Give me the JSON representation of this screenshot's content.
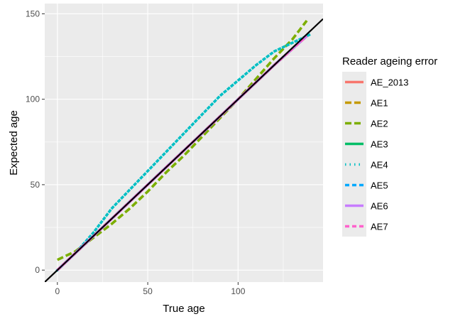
{
  "chart_data": {
    "type": "line",
    "title": "",
    "xlabel": "True age",
    "ylabel": "Expected age",
    "xlim": [
      -7,
      147
    ],
    "ylim": [
      -7,
      156
    ],
    "x_ticks": [
      0,
      50,
      100
    ],
    "y_ticks": [
      0,
      50,
      100,
      150
    ],
    "grid": true,
    "panel_background": "#EBEBEB",
    "legend": {
      "title": "Reader ageing error",
      "placement": "right"
    },
    "reference_line": {
      "name": "1:1",
      "color": "#000000",
      "slope": 1,
      "intercept": 0
    },
    "series": [
      {
        "name": "AE_2013",
        "color": "#F8766D",
        "dash": "solid",
        "x": [
          0,
          20,
          40,
          60,
          80,
          100,
          120,
          138
        ],
        "y": [
          0,
          20,
          40,
          60,
          80,
          100,
          120,
          137
        ]
      },
      {
        "name": "AE1",
        "color": "#C49A00",
        "dash": "long",
        "x": [
          0,
          20,
          40,
          60,
          80,
          100,
          120,
          138
        ],
        "y": [
          0,
          20,
          40,
          60,
          80,
          100,
          120,
          137
        ]
      },
      {
        "name": "AE2",
        "color": "#7CAE00",
        "dash": "long",
        "x": [
          0,
          10,
          20,
          30,
          40,
          50,
          60,
          70,
          80,
          90,
          100,
          110,
          120,
          130,
          138
        ],
        "y": [
          6,
          11,
          19,
          27,
          36,
          46,
          57,
          67,
          78,
          89,
          100,
          112,
          124,
          135,
          146
        ]
      },
      {
        "name": "AE3",
        "color": "#00BE67",
        "dash": "solid",
        "x": [
          0,
          20,
          40,
          60,
          80,
          100,
          120,
          138
        ],
        "y": [
          0,
          20,
          40,
          60,
          80,
          100,
          120,
          137
        ]
      },
      {
        "name": "AE4",
        "color": "#00BFC4",
        "dash": "dot",
        "x": [
          0,
          10,
          20,
          30,
          40,
          50,
          60,
          70,
          80,
          90,
          100,
          110,
          120,
          130,
          140
        ],
        "y": [
          0,
          10,
          22,
          36,
          47,
          58,
          69,
          80,
          91,
          102,
          111,
          120,
          128,
          133,
          138
        ]
      },
      {
        "name": "AE5",
        "color": "#00A9FF",
        "dash": "dash",
        "x": [
          0,
          20,
          40,
          60,
          80,
          100,
          120,
          138
        ],
        "y": [
          0,
          20,
          40,
          60,
          80,
          100,
          120,
          137
        ]
      },
      {
        "name": "AE6",
        "color": "#C77CFF",
        "dash": "solid",
        "x": [
          0,
          20,
          40,
          60,
          80,
          100,
          120,
          138
        ],
        "y": [
          0,
          20,
          40,
          60,
          80,
          100,
          120,
          137
        ]
      },
      {
        "name": "AE7",
        "color": "#FF61CC",
        "dash": "dash",
        "x": [
          0,
          20,
          40,
          60,
          80,
          100,
          120,
          138
        ],
        "y": [
          0,
          20,
          40,
          60,
          80,
          100,
          120,
          137
        ]
      }
    ]
  }
}
